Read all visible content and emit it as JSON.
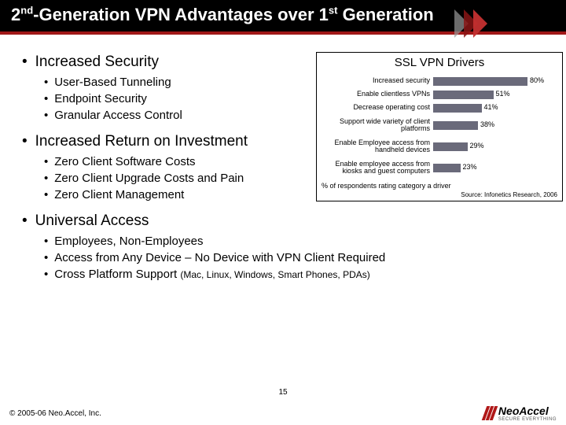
{
  "title_html": "2<sup>nd</sup>-Generation VPN Advantages over 1<sup>st</sup> Generation",
  "sections": [
    {
      "heading": "Increased Security",
      "items": [
        "User-Based Tunneling",
        "Endpoint Security",
        "Granular Access Control"
      ]
    },
    {
      "heading": "Increased Return on Investment",
      "items": [
        "Zero Client Software Costs",
        "Zero Client Upgrade Costs and Pain",
        "Zero Client Management"
      ]
    },
    {
      "heading": "Universal Access",
      "items": [
        "Employees, Non-Employees",
        "Access from Any Device – No Device with VPN Client Required",
        "Cross Platform Support <span class=\"sub-note\">(Mac, Linux, Windows, Smart Phones, PDAs)</span>"
      ]
    }
  ],
  "chart": {
    "type": "bar-horizontal",
    "title": "SSL VPN Drivers",
    "bar_color": "#6a6a7a",
    "max_value": 100,
    "bars": [
      {
        "label": "Increased security",
        "value": 80,
        "value_label": "80%"
      },
      {
        "label": "Enable clientless VPNs",
        "value": 51,
        "value_label": "51%"
      },
      {
        "label": "Decrease operating cost",
        "value": 41,
        "value_label": "41%"
      },
      {
        "label": "Support wide variety of client platforms",
        "value": 38,
        "value_label": "38%",
        "tall": true
      },
      {
        "label": "Enable Employee access from handheld devices",
        "value": 29,
        "value_label": "29%",
        "tall": true
      },
      {
        "label": "Enable employee access from kiosks and guest computers",
        "value": 23,
        "value_label": "23%",
        "tall": true
      }
    ],
    "footer": "% of respondents rating category a driver",
    "source": "Source: Infonetics Research, 2006"
  },
  "page_number": "15",
  "copyright": "© 2005-06 Neo.Accel, Inc.",
  "logo": {
    "name": "NeoAccel",
    "tagline": "Secure Everything"
  }
}
